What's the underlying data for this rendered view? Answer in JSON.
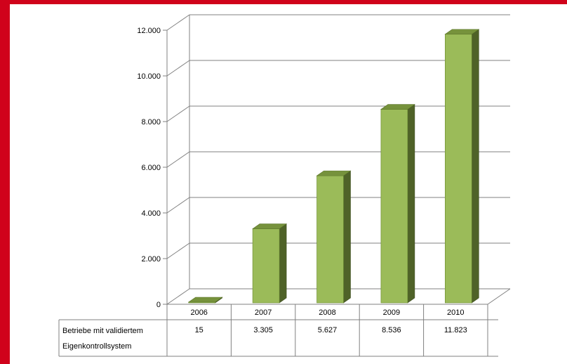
{
  "chart_data": {
    "type": "bar",
    "style": "3d-column",
    "categories": [
      "2006",
      "2007",
      "2008",
      "2009",
      "2010"
    ],
    "series": [
      {
        "name": "Betriebe mit validiertem Eigenkontrollsystem",
        "values": [
          15,
          3305,
          5627,
          8536,
          11823
        ]
      }
    ],
    "value_labels": [
      "15",
      "3.305",
      "5.627",
      "8.536",
      "11.823"
    ],
    "yticks": [
      {
        "value": 0,
        "label": "0"
      },
      {
        "value": 2000,
        "label": "2.000"
      },
      {
        "value": 4000,
        "label": "4.000"
      },
      {
        "value": 6000,
        "label": "6.000"
      },
      {
        "value": 8000,
        "label": "8.000"
      },
      {
        "value": 10000,
        "label": "10.000"
      },
      {
        "value": 12000,
        "label": "12.000"
      }
    ],
    "ylim": [
      0,
      12000
    ],
    "title": "",
    "xlabel": "",
    "ylabel": "",
    "grid": true,
    "legend": "data-table-below",
    "colors": {
      "bar_front": "#9bbb59",
      "bar_side": "#4f6228",
      "bar_top": "#76923c",
      "grid": "#808080",
      "frame": "#d0021b"
    }
  },
  "table": {
    "row_label_line1": "Betriebe mit validiertem",
    "row_label_line2": "Eigenkontrollsystem"
  }
}
